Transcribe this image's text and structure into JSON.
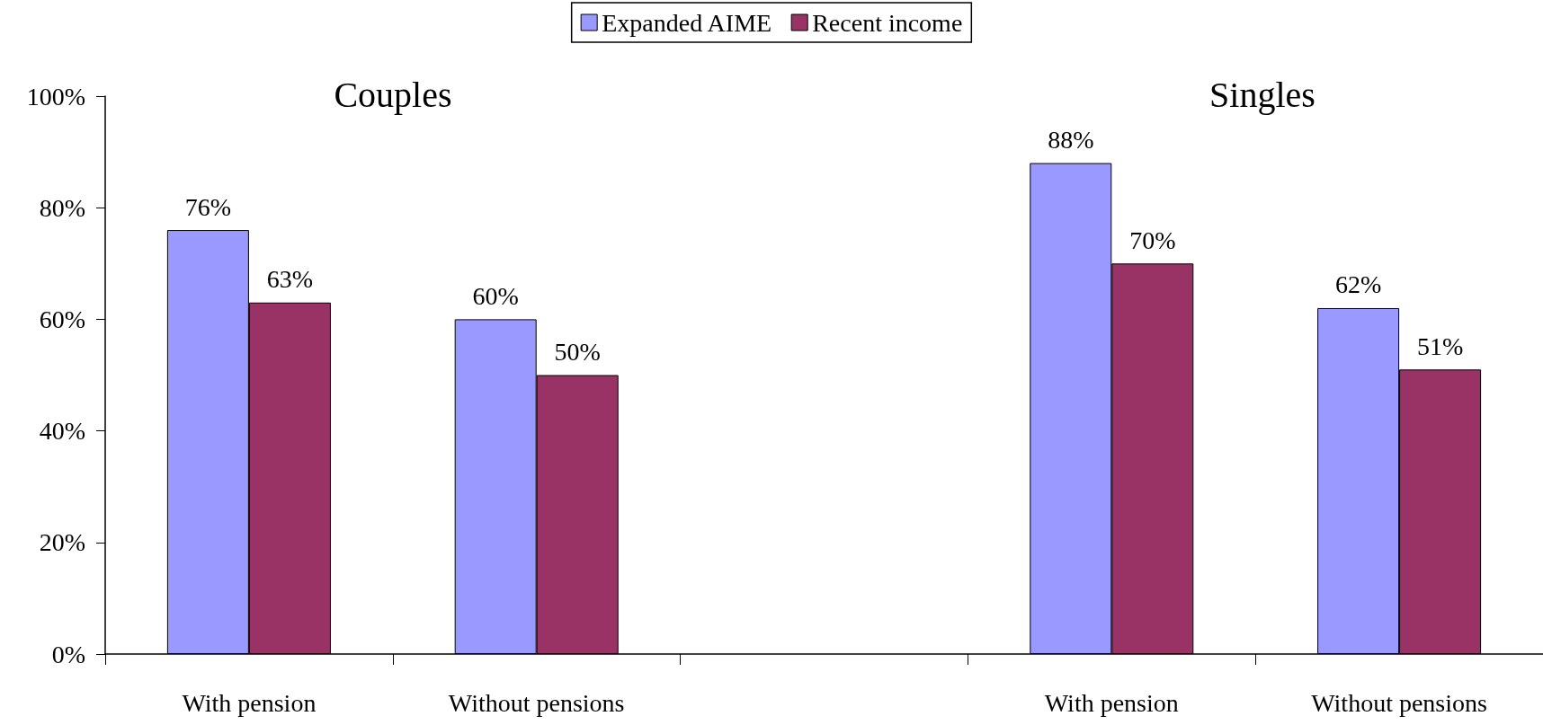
{
  "chart_data": {
    "type": "bar",
    "annotations": [
      "Couples",
      "Singles"
    ],
    "categories": [
      "With pension",
      "Without pensions",
      null,
      "With pension",
      "Without pensions"
    ],
    "series": [
      {
        "name": "Expanded AIME",
        "color": "#9999ff",
        "values": [
          76,
          60,
          null,
          88,
          62
        ],
        "value_labels": [
          "76%",
          "60%",
          null,
          "88%",
          "62%"
        ]
      },
      {
        "name": "Recent income",
        "color": "#993366",
        "values": [
          63,
          50,
          null,
          70,
          51
        ],
        "value_labels": [
          "63%",
          "50%",
          null,
          "70%",
          "51%"
        ]
      }
    ],
    "ylim": [
      0,
      100
    ],
    "yticks": [
      {
        "value": 0,
        "label": "0%"
      },
      {
        "value": 20,
        "label": "20%"
      },
      {
        "value": 40,
        "label": "40%"
      },
      {
        "value": 60,
        "label": "60%"
      },
      {
        "value": 80,
        "label": "80%"
      },
      {
        "value": 100,
        "label": "100%"
      }
    ],
    "grid": false,
    "legend": "top"
  }
}
